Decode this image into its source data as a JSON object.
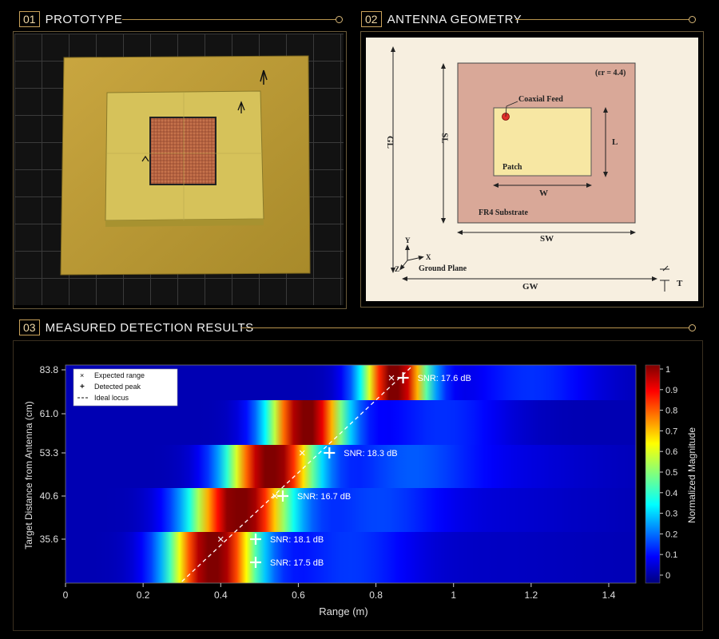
{
  "panels": [
    {
      "num": "01",
      "title": "PROTOTYPE"
    },
    {
      "num": "02",
      "title": "ANTENNA GEOMETRY"
    },
    {
      "num": "03",
      "title": "MEASURED DETECTION RESULTS"
    }
  ],
  "geometry": {
    "er": "(εr = 4.4)",
    "coaxial_feed": "Coaxial Feed",
    "patch": "Patch",
    "substrate": "FR4 Substrate",
    "ground_plane": "Ground Plane",
    "L": "L",
    "W": "W",
    "SL": "SL",
    "SW": "SW",
    "GL": "GL",
    "GW": "GW",
    "T": "T",
    "axis_x": "X",
    "axis_y": "Y",
    "axis_z": "Z",
    "colors": {
      "substrate": "#d9a898",
      "patch": "#f7e7a3",
      "feed": "#e0302a",
      "background": "#f7efe0"
    }
  },
  "chart_data": {
    "type": "heatmap",
    "xlabel": "Range (m)",
    "ylabel": "Target Distance from Antenna (cm)",
    "colorbar_label": "Normalized Magnitude",
    "xlim": [
      0,
      1.47
    ],
    "x_ticks": [
      "0",
      "0.2",
      "0.4",
      "0.6",
      "0.8",
      "1",
      "1.2",
      "1.4"
    ],
    "y_ticks": [
      "83.8",
      "61.0",
      "53.3",
      "40.6",
      "35.6"
    ],
    "colorbar_ticks": [
      "0",
      "0.1",
      "0.2",
      "0.3",
      "0.4",
      "0.5",
      "0.6",
      "0.7",
      "0.8",
      "0.9",
      "1"
    ],
    "rows": [
      {
        "label": "83.8",
        "peak_range": 0.85,
        "width": 0.06,
        "sidelobe": 0.0
      },
      {
        "label": "61.0",
        "peak_range": 0.62,
        "width": 0.07,
        "sidelobe": 0.0
      },
      {
        "label": "53.3",
        "peak_range": 0.53,
        "width": 0.08,
        "sidelobe": 0.15
      },
      {
        "label": "40.6",
        "peak_range": 0.45,
        "width": 0.09,
        "sidelobe": 0.1
      },
      {
        "label": "35.6",
        "peak_range": 0.38,
        "width": 0.08,
        "sidelobe": 0.05
      }
    ],
    "legend": [
      "Expected range",
      "Detected peak",
      "Ideal locus"
    ],
    "legend_position": "top-left",
    "expected": [
      {
        "range": 0.84,
        "row": 0
      },
      {
        "range": 0.61,
        "row": 2
      },
      {
        "range": 0.54,
        "row": 3
      },
      {
        "range": 0.4,
        "row": 4
      }
    ],
    "detected": [
      {
        "range": 0.87,
        "row": 0,
        "snr": "SNR: 17.6 dB"
      },
      {
        "range": 0.68,
        "row": 2,
        "snr": "SNR: 18.3 dB"
      },
      {
        "range": 0.56,
        "row": 3,
        "snr": "SNR: 16.7 dB"
      },
      {
        "range": 0.49,
        "row": 4,
        "snr": "SNR: 18.1 dB"
      },
      {
        "range": 0.49,
        "row": 5,
        "snr": "SNR: 17.5 dB"
      }
    ],
    "ideal_locus": [
      [
        0.3,
        5.3
      ],
      [
        0.89,
        -0.2
      ]
    ]
  }
}
